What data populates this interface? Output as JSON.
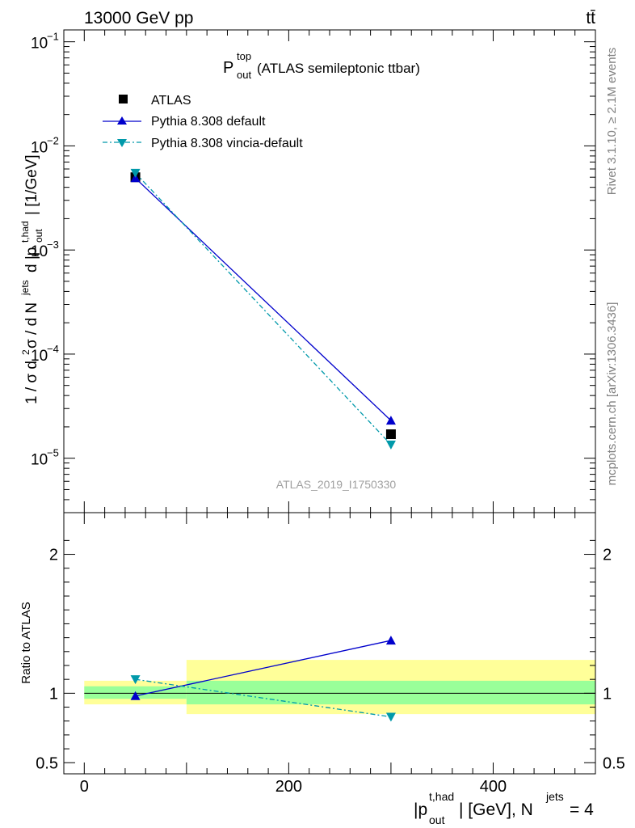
{
  "header": {
    "left": "13000 GeV pp",
    "right": "tt̄"
  },
  "side_labels": {
    "rivet": "Rivet 3.1.10, ≥ 2.1M events",
    "mcplots": "mcplots.cern.ch [arXiv:1306.3436]"
  },
  "plot_title": {
    "main": "P",
    "sup": "top",
    "sub": "out",
    "rest": " (ATLAS semileptonic ttbar)"
  },
  "watermark": "ATLAS_2019_I1750330",
  "ylabel_top": "1 / σ d²σ / d N^jets d |p_out^t,had| [1/GeV]",
  "ylabel_bottom": "Ratio to ATLAS",
  "xlabel": "|p_out^t,had| [GeV], N^jets = 4",
  "colors": {
    "data": "#000000",
    "pythia_default": "#0000cc",
    "pythia_vincia": "#0099aa",
    "band_inner": "#99ff99",
    "band_outer": "#ffff99"
  },
  "chart_data": [
    {
      "type": "line",
      "panel": "main",
      "yscale": "log",
      "ylim": [
        3e-06,
        0.13
      ],
      "xlim": [
        -20,
        500
      ],
      "y_ticks": [
        {
          "base": "10",
          "exp": "−5",
          "value": 1e-05
        },
        {
          "base": "10",
          "exp": "−4",
          "value": 0.0001
        },
        {
          "base": "10",
          "exp": "−3",
          "value": 0.001
        },
        {
          "base": "10",
          "exp": "−2",
          "value": 0.01
        },
        {
          "base": "10",
          "exp": "−1",
          "value": 0.1
        }
      ],
      "series": [
        {
          "name": "ATLAS",
          "marker": "square",
          "x": [
            50,
            300
          ],
          "y": [
            0.005,
            1.7e-05
          ]
        },
        {
          "name": "Pythia 8.308 default",
          "marker": "triangle-up",
          "x": [
            50,
            300
          ],
          "y": [
            0.0049,
            2.3e-05
          ]
        },
        {
          "name": "Pythia 8.308 vincia-default",
          "marker": "triangle-down",
          "x": [
            50,
            300
          ],
          "y": [
            0.0055,
            1.35e-05
          ]
        }
      ]
    },
    {
      "type": "line",
      "panel": "ratio",
      "ylim": [
        0.42,
        2.3
      ],
      "xlim": [
        -20,
        500
      ],
      "y_ticks": [
        {
          "label": "0.5",
          "value": 0.5
        },
        {
          "label": "1",
          "value": 1
        },
        {
          "label": "2",
          "value": 2
        }
      ],
      "x_ticks": [
        {
          "label": "0",
          "value": 0
        },
        {
          "label": "200",
          "value": 200
        },
        {
          "label": "400",
          "value": 400
        }
      ],
      "bands": [
        {
          "x": [
            0,
            100
          ],
          "inner": [
            0.96,
            1.05
          ],
          "outer": [
            0.92,
            1.09
          ]
        },
        {
          "x": [
            100,
            500
          ],
          "inner": [
            0.92,
            1.09
          ],
          "outer": [
            0.85,
            1.24
          ]
        }
      ],
      "series": [
        {
          "name": "Pythia 8.308 default",
          "marker": "triangle-up",
          "x": [
            50,
            300
          ],
          "y": [
            0.98,
            1.38
          ]
        },
        {
          "name": "Pythia 8.308 vincia-default",
          "marker": "triangle-down",
          "x": [
            50,
            300
          ],
          "y": [
            1.1,
            0.83
          ]
        }
      ]
    }
  ]
}
